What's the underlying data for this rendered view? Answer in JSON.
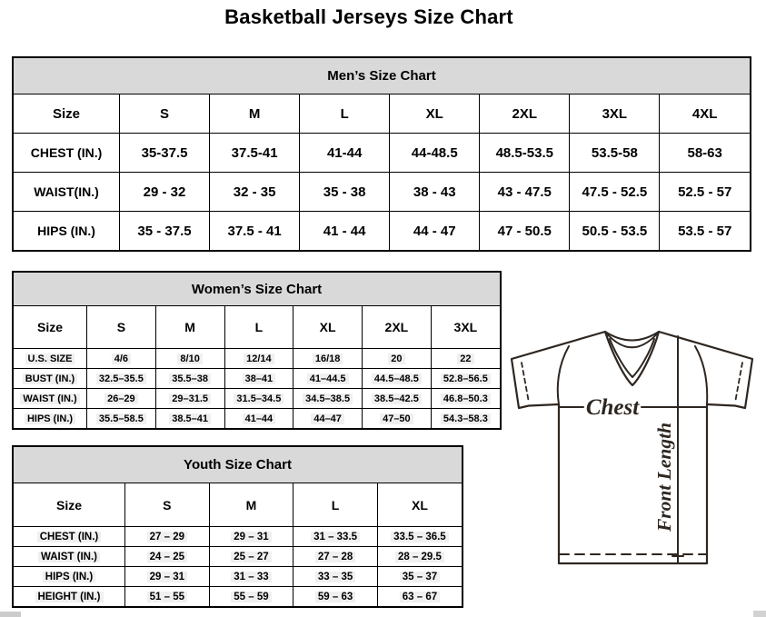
{
  "page": {
    "title": "Basketball Jerseys Size Chart"
  },
  "tables": {
    "men": {
      "title": "Men’s Size Chart",
      "columns": [
        "Size",
        "S",
        "M",
        "L",
        "XL",
        "2XL",
        "3XL",
        "4XL"
      ],
      "rows": [
        {
          "label": "CHEST (IN.)",
          "values": [
            "35-37.5",
            "37.5-41",
            "41-44",
            "44-48.5",
            "48.5-53.5",
            "53.5-58",
            "58-63"
          ]
        },
        {
          "label": "WAIST(IN.)",
          "values": [
            "29 - 32",
            "32 - 35",
            "35 - 38",
            "38 - 43",
            "43 - 47.5",
            "47.5 - 52.5",
            "52.5 - 57"
          ]
        },
        {
          "label": "HIPS (IN.)",
          "values": [
            "35 - 37.5",
            "37.5 - 41",
            "41 - 44",
            "44 - 47",
            "47 - 50.5",
            "50.5 - 53.5",
            "53.5 - 57"
          ]
        }
      ]
    },
    "women": {
      "title": "Women’s Size Chart",
      "columns": [
        "Size",
        "S",
        "M",
        "L",
        "XL",
        "2XL",
        "3XL"
      ],
      "rows": [
        {
          "label": "U.S. SIZE",
          "values": [
            "4/6",
            "8/10",
            "12/14",
            "16/18",
            "20",
            "22"
          ]
        },
        {
          "label": "BUST (IN.)",
          "values": [
            "32.5–35.5",
            "35.5–38",
            "38–41",
            "41–44.5",
            "44.5–48.5",
            "52.8–56.5"
          ]
        },
        {
          "label": "WAIST (IN.)",
          "values": [
            "26–29",
            "29–31.5",
            "31.5–34.5",
            "34.5–38.5",
            "38.5–42.5",
            "46.8–50.3"
          ]
        },
        {
          "label": "HIPS (IN.)",
          "values": [
            "35.5–58.5",
            "38.5–41",
            "41–44",
            "44–47",
            "47–50",
            "54.3–58.3"
          ]
        }
      ]
    },
    "youth": {
      "title": "Youth Size Chart",
      "columns": [
        "Size",
        "S",
        "M",
        "L",
        "XL"
      ],
      "rows": [
        {
          "label": "CHEST (IN.)",
          "values": [
            "27 – 29",
            "29 – 31",
            "31 – 33.5",
            "33.5 – 36.5"
          ]
        },
        {
          "label": "WAIST (IN.)",
          "values": [
            "24 – 25",
            "25 – 27",
            "27 – 28",
            "28 – 29.5"
          ]
        },
        {
          "label": "HIPS (IN.)",
          "values": [
            "29 – 31",
            "31 – 33",
            "33 – 35",
            "35 – 37"
          ]
        },
        {
          "label": "HEIGHT (IN.)",
          "values": [
            "51 – 55",
            "55 – 59",
            "59 – 63",
            "63 – 67"
          ]
        }
      ]
    }
  },
  "diagram": {
    "chest_label": "Chest",
    "front_length_label": "Front Length"
  },
  "colors": {
    "table_header_bg": "#d9d9d9",
    "border": "#000000",
    "diagram_ink": "#2e2620",
    "cell_highlight": "#f0f0f0"
  }
}
